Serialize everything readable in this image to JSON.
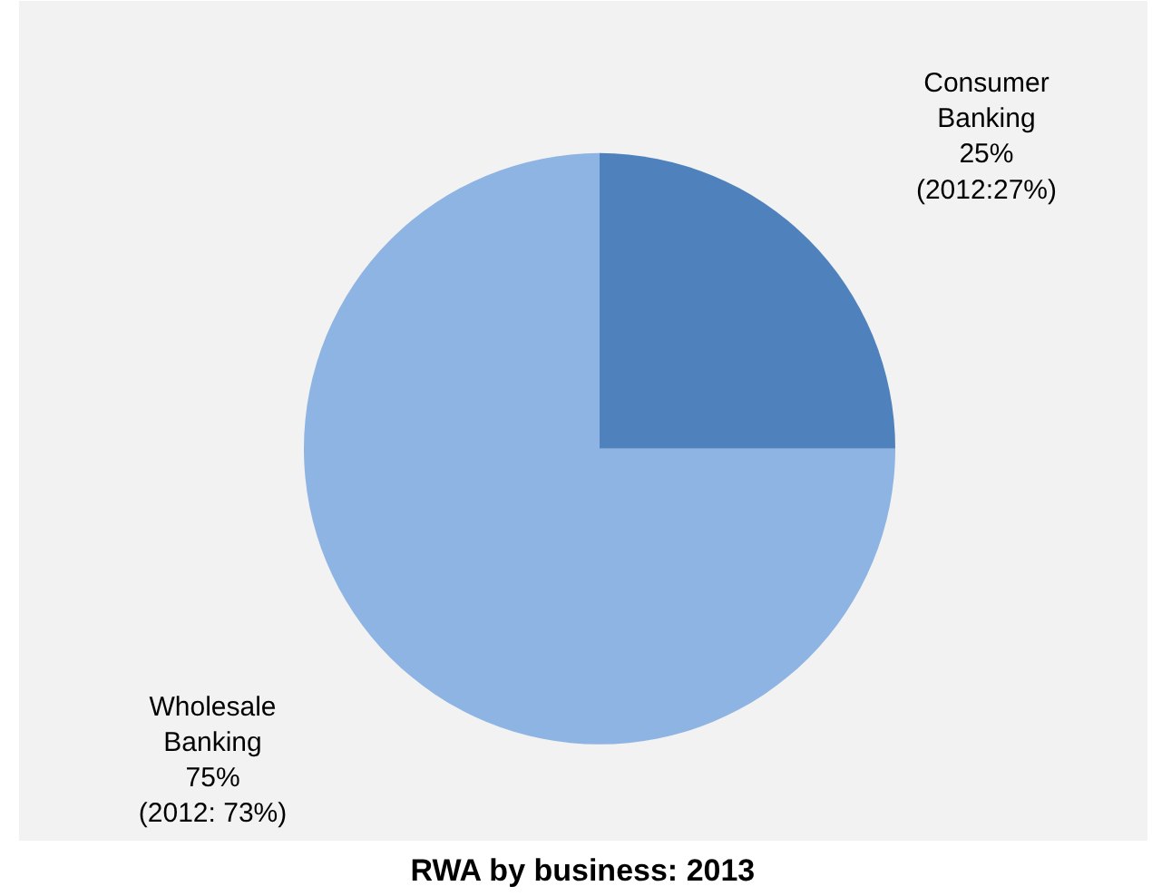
{
  "chart_data": {
    "type": "pie",
    "title": "RWA by business: 2013",
    "categories": [
      "Consumer Banking",
      "Wholesale Banking"
    ],
    "values": [
      25,
      75
    ],
    "colors": [
      "#4f81bd",
      "#8eb4e3"
    ],
    "value_labels": [
      "25%",
      "75%"
    ],
    "annotations": [
      "(2012:27%)",
      "(2012: 73%)"
    ]
  }
}
